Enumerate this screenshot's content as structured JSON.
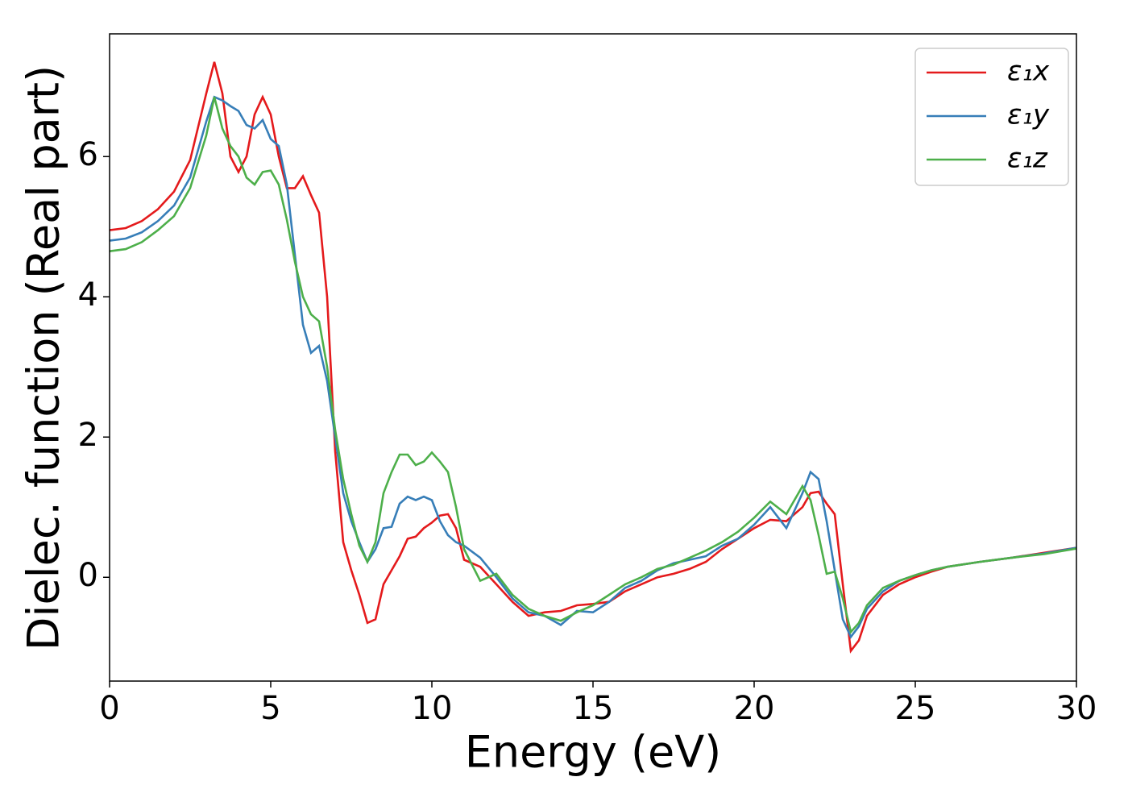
{
  "chart_data": {
    "type": "line",
    "x_label": "Energy (eV)",
    "y_label": "Dielec. function (Real part)",
    "x": [
      0,
      0.5,
      1,
      1.5,
      2,
      2.5,
      3,
      3.25,
      3.5,
      3.75,
      4,
      4.25,
      4.5,
      4.75,
      5,
      5.25,
      5.5,
      5.75,
      6,
      6.25,
      6.5,
      6.75,
      7,
      7.25,
      7.5,
      7.75,
      8,
      8.25,
      8.5,
      8.75,
      9,
      9.25,
      9.5,
      9.75,
      10,
      10.25,
      10.5,
      10.75,
      11,
      11.5,
      12,
      12.5,
      13,
      13.5,
      14,
      14.5,
      15,
      15.5,
      16,
      16.5,
      17,
      17.5,
      18,
      18.5,
      19,
      19.5,
      20,
      20.5,
      21,
      21.5,
      21.75,
      22,
      22.25,
      22.5,
      22.75,
      23,
      23.25,
      23.5,
      24,
      24.5,
      25,
      25.5,
      26,
      27,
      28,
      29,
      30
    ],
    "series": [
      {
        "name": "ε₁x",
        "color": "#e41a1c",
        "values": [
          4.95,
          4.98,
          5.08,
          5.25,
          5.5,
          5.95,
          6.9,
          7.35,
          6.9,
          6.0,
          5.78,
          6.0,
          6.6,
          6.85,
          6.6,
          6.0,
          5.55,
          5.55,
          5.72,
          5.45,
          5.2,
          4.0,
          1.8,
          0.5,
          0.1,
          -0.25,
          -0.65,
          -0.6,
          -0.1,
          0.1,
          0.3,
          0.55,
          0.58,
          0.7,
          0.78,
          0.88,
          0.9,
          0.7,
          0.25,
          0.15,
          -0.1,
          -0.35,
          -0.55,
          -0.5,
          -0.48,
          -0.4,
          -0.38,
          -0.35,
          -0.2,
          -0.1,
          0.0,
          0.05,
          0.12,
          0.22,
          0.4,
          0.55,
          0.7,
          0.82,
          0.8,
          1.0,
          1.2,
          1.22,
          1.05,
          0.9,
          -0.1,
          -1.05,
          -0.9,
          -0.55,
          -0.25,
          -0.1,
          0.0,
          0.08,
          0.15,
          0.22,
          0.28,
          0.35,
          0.42
        ]
      },
      {
        "name": "ε₁y",
        "color": "#377eb8",
        "values": [
          4.8,
          4.83,
          4.92,
          5.08,
          5.3,
          5.7,
          6.5,
          6.85,
          6.8,
          6.72,
          6.65,
          6.45,
          6.4,
          6.52,
          6.25,
          6.15,
          5.6,
          4.6,
          3.6,
          3.2,
          3.3,
          2.8,
          2.0,
          1.2,
          0.8,
          0.5,
          0.22,
          0.4,
          0.7,
          0.72,
          1.05,
          1.15,
          1.1,
          1.15,
          1.1,
          0.8,
          0.6,
          0.5,
          0.45,
          0.28,
          0.0,
          -0.3,
          -0.5,
          -0.55,
          -0.68,
          -0.48,
          -0.5,
          -0.35,
          -0.15,
          -0.05,
          0.1,
          0.2,
          0.25,
          0.3,
          0.45,
          0.55,
          0.75,
          1.0,
          0.7,
          1.2,
          1.5,
          1.4,
          0.8,
          0.1,
          -0.6,
          -0.85,
          -0.7,
          -0.45,
          -0.2,
          -0.05,
          0.03,
          0.1,
          0.15,
          0.22,
          0.28,
          0.34,
          0.42
        ]
      },
      {
        "name": "ε₁z",
        "color": "#4daf4a",
        "values": [
          4.65,
          4.68,
          4.78,
          4.95,
          5.15,
          5.55,
          6.3,
          6.85,
          6.4,
          6.15,
          6.0,
          5.7,
          5.6,
          5.78,
          5.8,
          5.6,
          5.1,
          4.5,
          4.0,
          3.75,
          3.65,
          3.0,
          2.1,
          1.4,
          0.9,
          0.45,
          0.22,
          0.5,
          1.2,
          1.5,
          1.75,
          1.75,
          1.6,
          1.65,
          1.78,
          1.65,
          1.5,
          1.0,
          0.4,
          -0.05,
          0.05,
          -0.25,
          -0.45,
          -0.55,
          -0.62,
          -0.5,
          -0.4,
          -0.25,
          -0.1,
          0.0,
          0.12,
          0.18,
          0.28,
          0.38,
          0.5,
          0.65,
          0.85,
          1.08,
          0.9,
          1.3,
          1.1,
          0.6,
          0.05,
          0.08,
          -0.3,
          -0.78,
          -0.65,
          -0.4,
          -0.15,
          -0.05,
          0.03,
          0.1,
          0.15,
          0.22,
          0.28,
          0.33,
          0.41
        ]
      }
    ],
    "xlim": [
      0,
      30
    ],
    "xticks": [
      0,
      5,
      10,
      15,
      20,
      25,
      30
    ],
    "ylim": [
      -1.48,
      7.75
    ],
    "yticks": [
      0,
      2,
      4,
      6
    ],
    "grid": false,
    "legend": "upper right"
  }
}
